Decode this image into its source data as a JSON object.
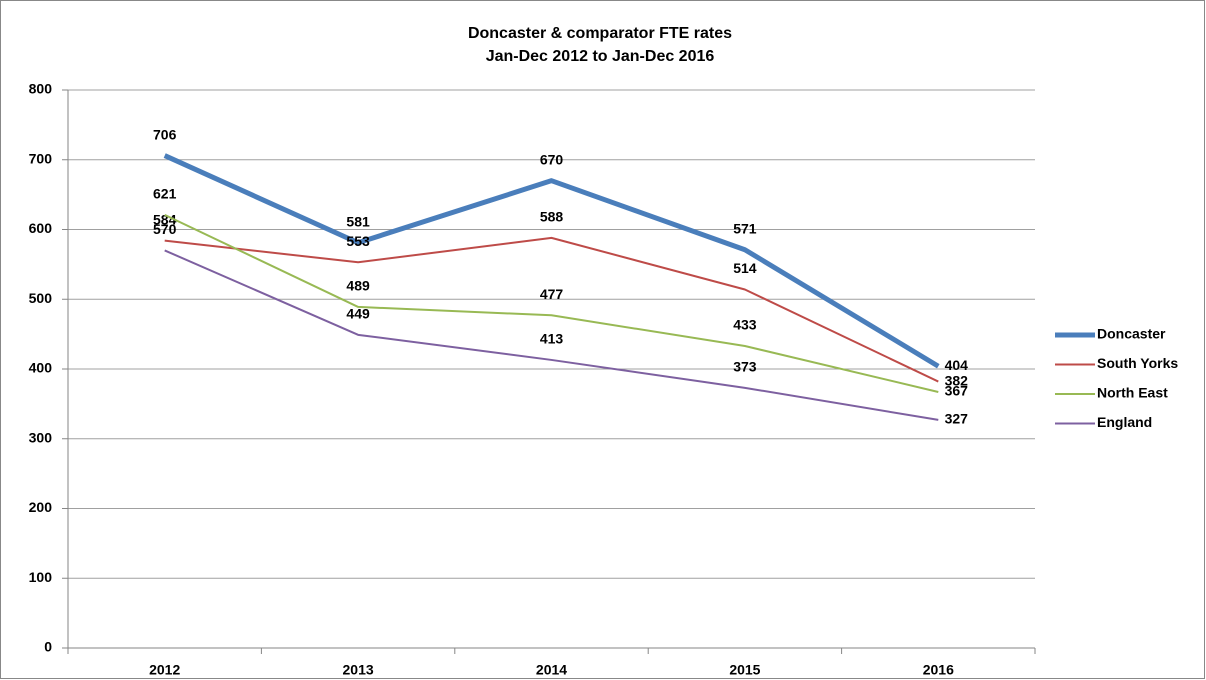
{
  "chart_data": {
    "type": "line",
    "title": "Doncaster & comparator FTE rates",
    "subtitle": "Jan-Dec 2012 to Jan-Dec 2016",
    "categories": [
      "2012",
      "2013",
      "2014",
      "2015",
      "2016"
    ],
    "series": [
      {
        "name": "Doncaster",
        "color": "#4a7ebb",
        "width": 5,
        "values": [
          706,
          581,
          670,
          571,
          404
        ]
      },
      {
        "name": "South Yorks",
        "color": "#be4b48",
        "width": 2,
        "values": [
          584,
          553,
          588,
          514,
          382
        ]
      },
      {
        "name": "North East",
        "color": "#98b954",
        "width": 2,
        "values": [
          621,
          489,
          477,
          433,
          367
        ]
      },
      {
        "name": "England",
        "color": "#7d60a0",
        "width": 2,
        "values": [
          570,
          449,
          413,
          373,
          327
        ]
      }
    ],
    "ylim": [
      0,
      800
    ],
    "yticks": [
      0,
      100,
      200,
      300,
      400,
      500,
      600,
      700,
      800
    ],
    "grid": true,
    "legend": "right"
  }
}
